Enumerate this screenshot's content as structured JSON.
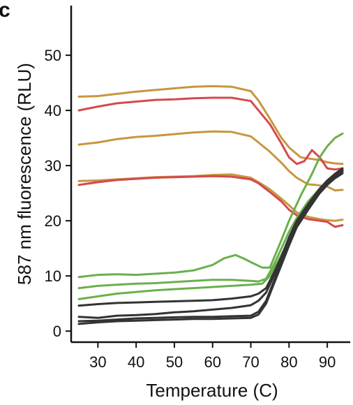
{
  "panel_letter": "c",
  "chart_data": {
    "type": "line",
    "xlabel": "Temperature (C)",
    "ylabel": "587 nm fluorescence (RLU)",
    "xlim": [
      23,
      96
    ],
    "ylim": [
      -2,
      59
    ],
    "xticks": [
      30,
      40,
      50,
      60,
      70,
      80,
      90
    ],
    "yticks": [
      0,
      10,
      20,
      30,
      40,
      50
    ],
    "grid": false,
    "series": [
      {
        "color": "#c8963e",
        "x": [
          25,
          30,
          35,
          40,
          45,
          50,
          55,
          60,
          65,
          70,
          72,
          75,
          78,
          80,
          83,
          86,
          88,
          90,
          92,
          94
        ],
        "y": [
          42.5,
          42.6,
          43.0,
          43.4,
          43.7,
          44.0,
          44.3,
          44.4,
          44.3,
          43.5,
          41.8,
          38.5,
          35.0,
          33.3,
          31.5,
          31.2,
          31.0,
          30.6,
          30.4,
          30.3
        ]
      },
      {
        "color": "#d44a4a",
        "x": [
          25,
          30,
          35,
          40,
          45,
          50,
          55,
          60,
          65,
          70,
          72,
          75,
          78,
          80,
          82,
          84,
          86,
          88,
          90,
          92,
          94
        ],
        "y": [
          40.0,
          40.7,
          41.3,
          41.6,
          41.9,
          42.0,
          42.2,
          42.3,
          42.3,
          41.7,
          40.0,
          37.5,
          34.0,
          31.5,
          30.3,
          30.8,
          32.8,
          31.5,
          29.5,
          29.3,
          29.5
        ]
      },
      {
        "color": "#c8963e",
        "x": [
          25,
          30,
          35,
          40,
          45,
          50,
          55,
          60,
          65,
          70,
          72,
          75,
          78,
          80,
          82,
          85,
          87,
          90,
          92,
          94
        ],
        "y": [
          33.8,
          34.2,
          34.8,
          35.2,
          35.4,
          35.7,
          36.0,
          36.2,
          36.1,
          35.3,
          34.2,
          32.5,
          30.5,
          29.0,
          27.8,
          26.6,
          26.5,
          26.2,
          25.5,
          25.6
        ]
      },
      {
        "color": "#c8963e",
        "x": [
          25,
          30,
          35,
          40,
          45,
          50,
          55,
          60,
          65,
          70,
          72,
          75,
          78,
          80,
          82,
          85,
          88,
          90,
          92,
          94
        ],
        "y": [
          27.2,
          27.3,
          27.5,
          27.7,
          27.9,
          28.0,
          28.1,
          28.3,
          28.4,
          27.8,
          27.0,
          25.7,
          24.0,
          22.8,
          21.5,
          20.7,
          20.3,
          20.1,
          20.0,
          20.2
        ]
      },
      {
        "color": "#d44a4a",
        "x": [
          25,
          30,
          35,
          40,
          45,
          50,
          55,
          60,
          65,
          70,
          72,
          75,
          78,
          80,
          82,
          85,
          88,
          90,
          92,
          94
        ],
        "y": [
          26.5,
          27.0,
          27.4,
          27.6,
          27.8,
          27.9,
          28.0,
          28.1,
          28.0,
          27.5,
          26.8,
          25.2,
          23.5,
          22.0,
          21.0,
          20.3,
          20.0,
          19.8,
          18.9,
          19.2
        ]
      },
      {
        "color": "#6ab04c",
        "x": [
          25,
          30,
          35,
          40,
          45,
          50,
          55,
          60,
          63,
          66,
          68,
          70,
          73,
          75,
          78,
          80,
          83,
          86,
          88,
          90,
          92,
          94
        ],
        "y": [
          9.8,
          10.2,
          10.3,
          10.2,
          10.4,
          10.6,
          11.0,
          12.0,
          13.2,
          13.8,
          13.2,
          12.5,
          11.5,
          11.5,
          16.5,
          20.0,
          24.5,
          28.5,
          31.5,
          33.5,
          35.0,
          35.8
        ]
      },
      {
        "color": "#6ab04c",
        "x": [
          25,
          30,
          35,
          40,
          45,
          50,
          55,
          60,
          65,
          70,
          72,
          74,
          76,
          78,
          80,
          82,
          85,
          88,
          90,
          92,
          94
        ],
        "y": [
          7.8,
          8.2,
          8.4,
          8.6,
          8.7,
          8.9,
          9.1,
          9.3,
          9.3,
          9.1,
          9.0,
          9.5,
          12.0,
          15.0,
          18.0,
          20.5,
          23.5,
          25.8,
          27.0,
          28.0,
          29.0
        ]
      },
      {
        "color": "#6ab04c",
        "x": [
          25,
          30,
          35,
          40,
          45,
          50,
          55,
          60,
          65,
          70,
          73,
          75,
          77,
          80,
          83,
          86,
          88,
          90,
          92,
          94
        ],
        "y": [
          5.8,
          6.3,
          6.8,
          7.1,
          7.4,
          7.6,
          7.8,
          8.0,
          8.2,
          8.4,
          8.6,
          10.0,
          12.5,
          16.5,
          20.5,
          23.8,
          25.8,
          27.0,
          28.0,
          28.8
        ]
      },
      {
        "color": "#333333",
        "x": [
          25,
          30,
          35,
          40,
          45,
          50,
          55,
          60,
          65,
          70,
          72,
          74,
          76,
          78,
          80,
          82,
          85,
          88,
          90,
          92,
          94
        ],
        "y": [
          4.6,
          4.9,
          5.1,
          5.2,
          5.3,
          5.4,
          5.5,
          5.6,
          5.9,
          6.3,
          6.8,
          7.8,
          10.5,
          13.5,
          17.0,
          20.0,
          23.0,
          25.8,
          27.3,
          28.5,
          29.5
        ]
      },
      {
        "color": "#333333",
        "x": [
          25,
          30,
          35,
          40,
          45,
          50,
          55,
          60,
          65,
          70,
          72,
          74,
          76,
          78,
          80,
          82,
          85,
          88,
          90,
          92,
          94
        ],
        "y": [
          2.6,
          2.4,
          2.8,
          2.9,
          3.1,
          3.4,
          3.6,
          3.9,
          4.2,
          4.7,
          5.5,
          7.0,
          10.0,
          13.0,
          16.5,
          19.5,
          22.8,
          25.5,
          27.0,
          28.2,
          29.2
        ]
      },
      {
        "color": "#333333",
        "x": [
          25,
          30,
          35,
          40,
          45,
          50,
          55,
          60,
          65,
          70,
          72,
          74,
          76,
          78,
          80,
          82,
          85,
          88,
          90,
          92,
          94
        ],
        "y": [
          1.8,
          1.9,
          2.1,
          2.3,
          2.4,
          2.5,
          2.6,
          2.6,
          2.7,
          2.8,
          3.5,
          5.5,
          9.0,
          12.5,
          16.0,
          19.2,
          22.5,
          25.2,
          26.8,
          28.0,
          29.0
        ]
      },
      {
        "color": "#333333",
        "x": [
          25,
          30,
          35,
          40,
          45,
          50,
          55,
          60,
          65,
          70,
          72,
          74,
          76,
          78,
          80,
          82,
          85,
          88,
          90,
          92,
          94
        ],
        "y": [
          1.3,
          1.6,
          1.8,
          1.9,
          2.0,
          2.1,
          2.2,
          2.2,
          2.3,
          2.4,
          3.0,
          5.0,
          8.5,
          12.0,
          15.5,
          18.8,
          22.0,
          25.0,
          26.5,
          27.7,
          28.6
        ]
      }
    ]
  }
}
